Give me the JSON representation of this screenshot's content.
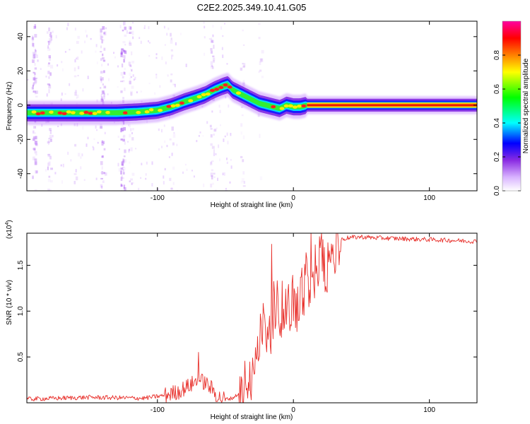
{
  "title": "C2E2.2025.349.10.41.G05",
  "chart_data": [
    {
      "type": "heatmap",
      "name": "spectrogram",
      "xlabel": "Height of straight line (km)",
      "ylabel": "Frequency (Hz)",
      "xlim": [
        -196,
        135
      ],
      "ylim": [
        -50,
        49
      ],
      "xticks": [
        -100,
        0,
        100
      ],
      "yticks": [
        -40,
        -20,
        0,
        20,
        40
      ],
      "xtick_labels": [
        "-100",
        "0",
        "100"
      ],
      "ytick_labels": [
        "-40",
        "-20",
        "0",
        "20",
        "40"
      ],
      "ridge": {
        "x": [
          -196,
          -170,
          -150,
          -130,
          -115,
          -100,
          -90,
          -80,
          -72,
          -65,
          -58,
          -52,
          -48,
          -45,
          -40,
          -35,
          -30,
          -25,
          -20,
          -15,
          -10,
          -5,
          0,
          5,
          10,
          20,
          40,
          80,
          135
        ],
        "y": [
          -4.5,
          -4.5,
          -4.5,
          -4.5,
          -4,
          -3,
          -1,
          2,
          4,
          6,
          9,
          11,
          12,
          9,
          7,
          5,
          3,
          1,
          0,
          -1,
          -2,
          0,
          -1,
          -1,
          0,
          0,
          0,
          0,
          0
        ]
      },
      "colorbar": {
        "label": "Normalized spectral amplitude",
        "range": [
          0,
          1
        ],
        "ticks": [
          0.0,
          0.2,
          0.4,
          0.6,
          0.8
        ],
        "tick_labels": [
          "0.0",
          "0.2",
          "0.4",
          "0.6",
          "0.8"
        ],
        "colors": [
          "#ffffff",
          "#8a2be2",
          "#0000ff",
          "#00ffff",
          "#00ff00",
          "#ffff00",
          "#ff8000",
          "#ff0000",
          "#ff00a0"
        ]
      }
    },
    {
      "type": "line",
      "name": "snr",
      "xlabel": "Height of straight line (km)",
      "ylabel": "SNR (10 * v/v)",
      "multiplier_label": "(x10",
      "multiplier_exp": "4",
      "multiplier_close": ")",
      "xlim": [
        -196,
        135
      ],
      "ylim": [
        0,
        1.85
      ],
      "xticks": [
        -100,
        0,
        100
      ],
      "yticks": [
        0.5,
        1.0,
        1.5
      ],
      "xtick_labels": [
        "-100",
        "0",
        "100"
      ],
      "ytick_labels": [
        "0.5",
        "1.0",
        "1.5"
      ],
      "line_color": "#e8302b",
      "envelope": {
        "x": [
          -196,
          -150,
          -110,
          -95,
          -85,
          -75,
          -70,
          -65,
          -60,
          -55,
          -50,
          -45,
          -40,
          -35,
          -30,
          -25,
          -20,
          -15,
          -10,
          -5,
          0,
          5,
          10,
          15,
          20,
          25,
          30,
          35,
          40,
          50,
          60,
          80,
          100,
          120,
          135
        ],
        "y": [
          0.04,
          0.06,
          0.05,
          0.08,
          0.12,
          0.2,
          0.25,
          0.22,
          0.15,
          0.06,
          0.04,
          0.05,
          0.1,
          0.3,
          0.55,
          0.75,
          0.9,
          1.0,
          1.02,
          1.05,
          1.1,
          1.25,
          1.35,
          1.48,
          1.6,
          1.7,
          1.75,
          1.78,
          1.8,
          1.81,
          1.8,
          1.79,
          1.78,
          1.77,
          1.76
        ]
      },
      "spikes": [
        {
          "x": -70,
          "y": 0.55
        },
        {
          "x": -16,
          "y": 1.73
        },
        {
          "x": 13,
          "y": 1.85
        }
      ]
    }
  ]
}
